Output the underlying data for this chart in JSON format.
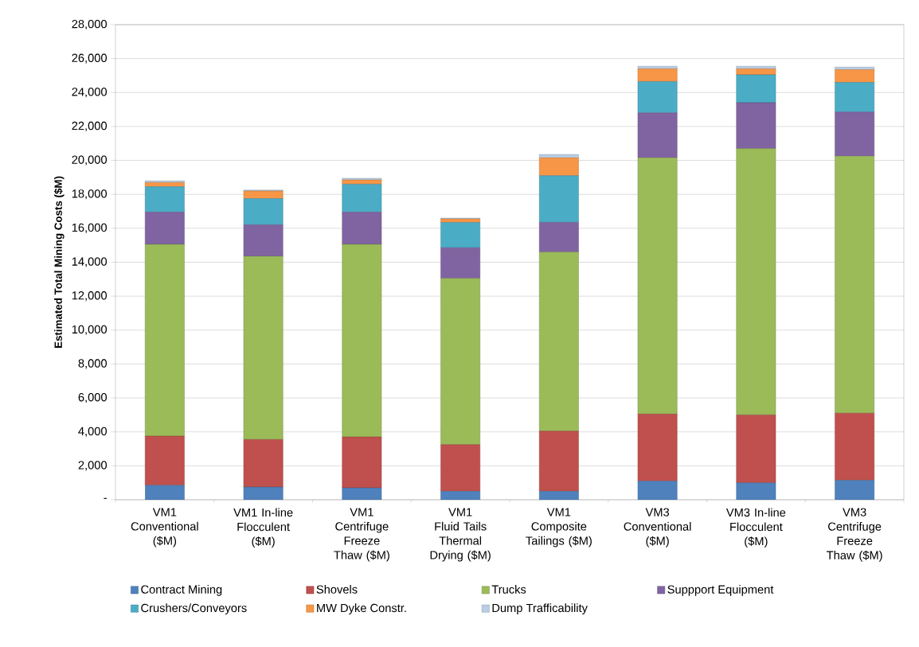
{
  "chart_data": {
    "type": "bar",
    "stacked": true,
    "ylabel": "Estimated Total Mining Costs ($M)",
    "categories": [
      "VM1 Conventional ($M)",
      "VM1 In-line Flocculent ($M)",
      "VM1 Centrifuge Freeze Thaw ($M)",
      "VM1 Fluid Tails Thermal Drying ($M)",
      "VM1 Composite Tailings ($M)",
      "VM3 Conventional ($M)",
      "VM3 In-line Flocculent ($M)",
      "VM3 Centrifuge Freeze Thaw ($M)"
    ],
    "series": [
      {
        "name": "Contract Mining",
        "color": "#4f81bd",
        "values": [
          850,
          750,
          700,
          500,
          500,
          1100,
          1000,
          1150
        ]
      },
      {
        "name": "Shovels",
        "color": "#c0504d",
        "values": [
          2900,
          2800,
          3000,
          2750,
          3550,
          3950,
          4000,
          3950
        ]
      },
      {
        "name": "Trucks",
        "color": "#9bbb59",
        "values": [
          11300,
          10800,
          11350,
          9800,
          10550,
          15100,
          15700,
          15150
        ]
      },
      {
        "name": "Suppport Equipment",
        "color": "#8064a2",
        "values": [
          1900,
          1850,
          1900,
          1800,
          1750,
          2650,
          2700,
          2600
        ]
      },
      {
        "name": "Crushers/Conveyors",
        "color": "#4bacc6",
        "values": [
          1500,
          1550,
          1650,
          1500,
          2750,
          1850,
          1650,
          1750
        ]
      },
      {
        "name": "MW Dyke Constr.",
        "color": "#f79646",
        "values": [
          250,
          450,
          250,
          200,
          1050,
          750,
          350,
          750
        ]
      },
      {
        "name": "Dump Trafficability",
        "color": "#b9cde5",
        "values": [
          100,
          50,
          100,
          50,
          200,
          150,
          150,
          150
        ]
      }
    ],
    "ylim": [
      0,
      28000
    ],
    "yticks": [
      {
        "value": 0,
        "label": "-"
      },
      {
        "value": 2000,
        "label": "2,000"
      },
      {
        "value": 4000,
        "label": "4,000"
      },
      {
        "value": 6000,
        "label": "6,000"
      },
      {
        "value": 8000,
        "label": "8,000"
      },
      {
        "value": 10000,
        "label": "10,000"
      },
      {
        "value": 12000,
        "label": "12,000"
      },
      {
        "value": 14000,
        "label": "14,000"
      },
      {
        "value": 16000,
        "label": "16,000"
      },
      {
        "value": 18000,
        "label": "18,000"
      },
      {
        "value": 20000,
        "label": "20,000"
      },
      {
        "value": 22000,
        "label": "22,000"
      },
      {
        "value": 24000,
        "label": "24,000"
      },
      {
        "value": 26000,
        "label": "26,000"
      },
      {
        "value": 28000,
        "label": "28,000"
      }
    ],
    "grid": "y",
    "legend": "bottom"
  }
}
